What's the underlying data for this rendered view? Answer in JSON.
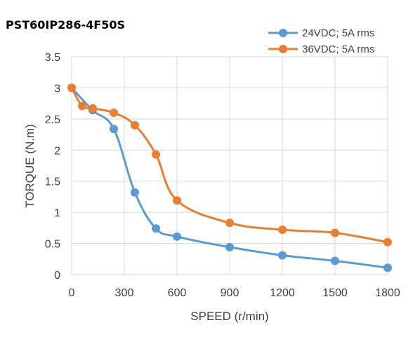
{
  "chart_data": {
    "type": "line",
    "title": "PST60IP286-4F50S",
    "xlabel": "SPEED (r/min)",
    "ylabel": "TORQUE (N.m)",
    "categories": [
      "0",
      "300",
      "600",
      "900",
      "1200",
      "1500",
      "1800"
    ],
    "y_ticks": [
      "0",
      "0.5",
      "1",
      "1.5",
      "2",
      "2.5",
      "3",
      "3.5"
    ],
    "ylim": [
      0,
      3.5
    ],
    "grid": true,
    "legend_position": "top-right",
    "series": [
      {
        "name": "24VDC; 5A rms",
        "color": "#5b9bd5",
        "x": [
          0,
          120,
          240,
          360,
          480,
          600,
          900,
          1200,
          1500,
          1800
        ],
        "values": [
          3.0,
          2.64,
          2.34,
          1.32,
          0.74,
          0.61,
          0.44,
          0.31,
          0.22,
          0.11
        ]
      },
      {
        "name": "36VDC; 5A rms",
        "color": "#ed7d31",
        "x": [
          0,
          60,
          120,
          240,
          360,
          480,
          600,
          900,
          1200,
          1500,
          1800
        ],
        "values": [
          3.0,
          2.71,
          2.67,
          2.6,
          2.4,
          1.93,
          1.19,
          0.83,
          0.72,
          0.67,
          0.52
        ]
      }
    ]
  }
}
